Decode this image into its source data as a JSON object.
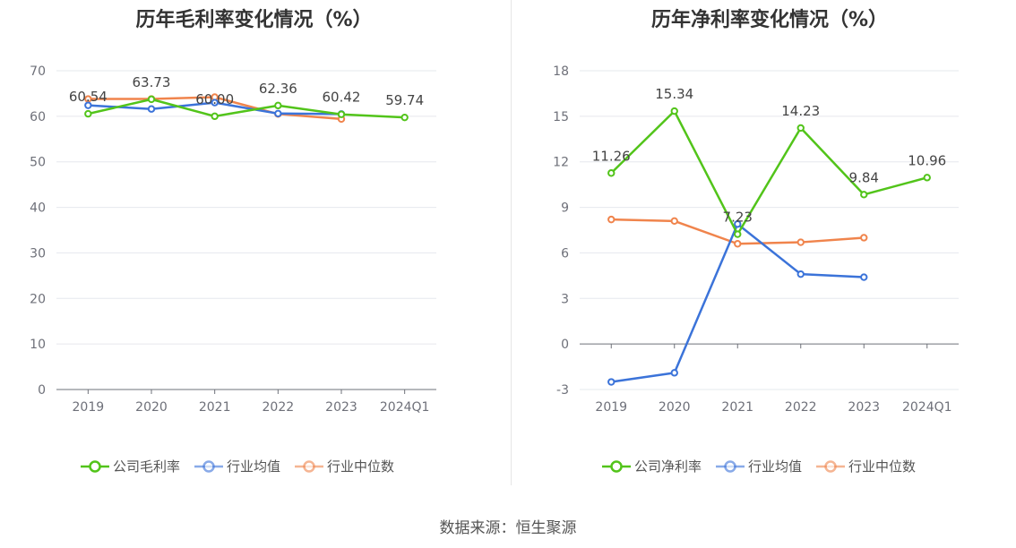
{
  "source": "数据来源：恒生聚源",
  "chart_data": [
    {
      "type": "line",
      "title": "历年毛利率变化情况（%）",
      "categories": [
        "2019",
        "2020",
        "2021",
        "2022",
        "2023",
        "2024Q1"
      ],
      "ylim": [
        0,
        70
      ],
      "yticks": [
        0,
        10,
        20,
        30,
        40,
        50,
        60,
        70
      ],
      "grid": true,
      "legend_position": "bottom",
      "series": [
        {
          "name": "公司毛利率",
          "color": "#52c41a",
          "values": [
            60.54,
            63.73,
            60.0,
            62.36,
            60.42,
            59.74
          ],
          "labels": [
            "60.54",
            "63.73",
            "60.00",
            "62.36",
            "60.42",
            "59.74"
          ]
        },
        {
          "name": "行业均值",
          "color": "#3b73d9",
          "values": [
            62.4,
            61.6,
            63.0,
            60.6,
            60.5,
            null
          ]
        },
        {
          "name": "行业中位数",
          "color": "#f0844c",
          "values": [
            63.8,
            63.8,
            64.2,
            60.5,
            59.4,
            null
          ]
        }
      ]
    },
    {
      "type": "line",
      "title": "历年净利率变化情况（%）",
      "categories": [
        "2019",
        "2020",
        "2021",
        "2022",
        "2023",
        "2024Q1"
      ],
      "ylim": [
        -3,
        18
      ],
      "yticks": [
        -3,
        0,
        3,
        6,
        9,
        12,
        15,
        18
      ],
      "grid": true,
      "legend_position": "bottom",
      "series": [
        {
          "name": "公司净利率",
          "color": "#52c41a",
          "values": [
            11.26,
            15.34,
            7.23,
            14.23,
            9.84,
            10.96
          ],
          "labels": [
            "11.26",
            "15.34",
            "7.23",
            "14.23",
            "9.84",
            "10.96"
          ]
        },
        {
          "name": "行业均值",
          "color": "#3b73d9",
          "values": [
            -2.5,
            -1.9,
            7.9,
            4.6,
            4.4,
            null
          ]
        },
        {
          "name": "行业中位数",
          "color": "#f0844c",
          "values": [
            8.2,
            8.1,
            6.6,
            6.7,
            7.0,
            null
          ]
        }
      ]
    }
  ]
}
